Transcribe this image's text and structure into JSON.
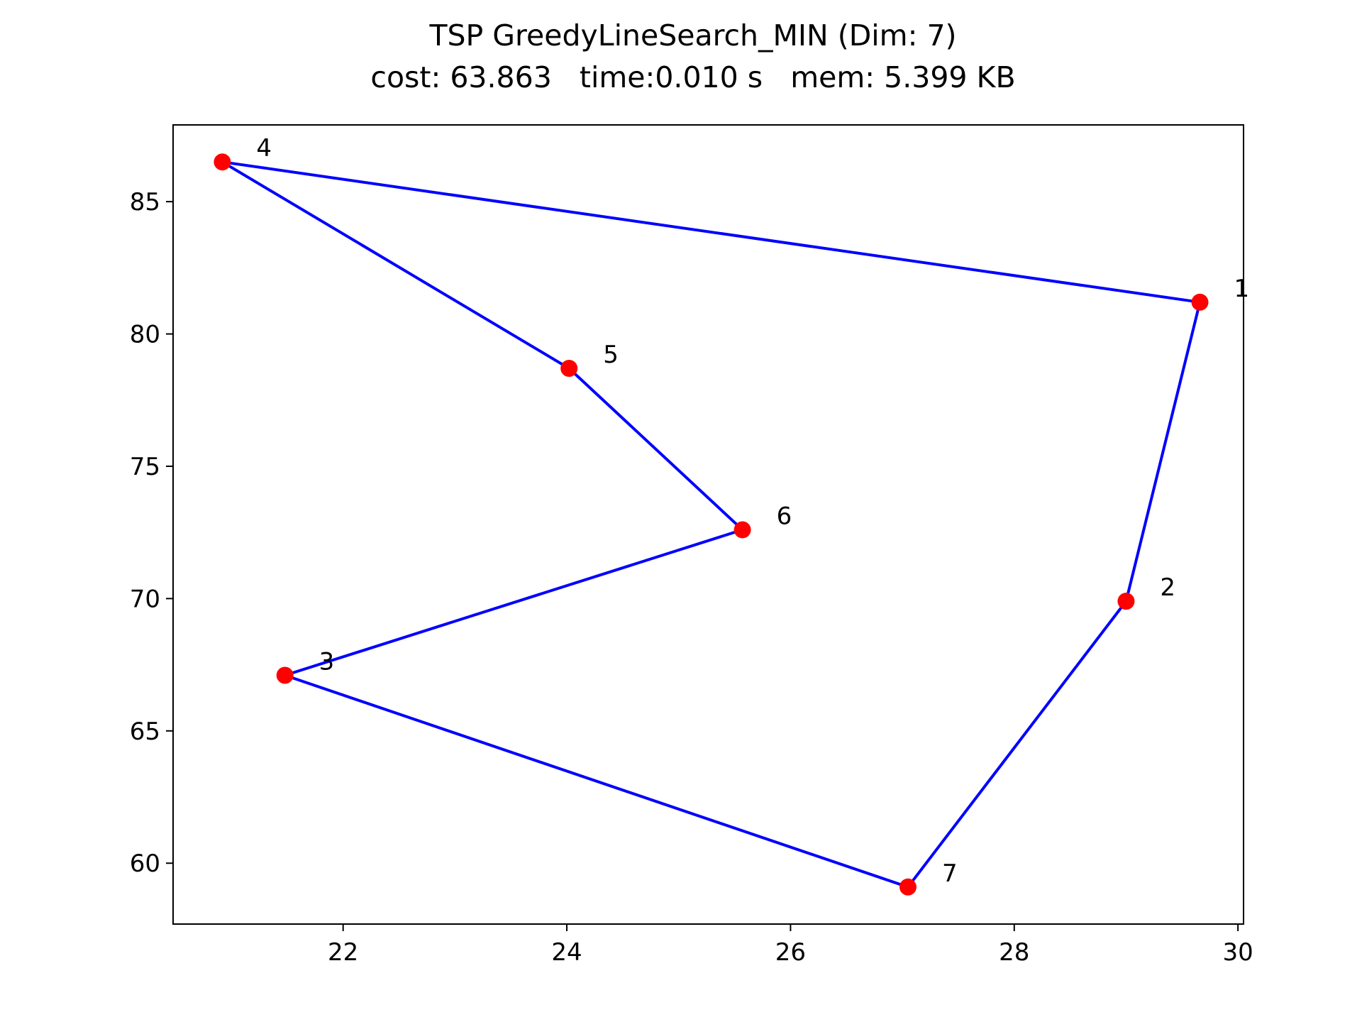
{
  "chart_data": {
    "type": "scatter",
    "title": "TSP GreedyLineSearch_MIN (Dim: 7)",
    "subtitle": "cost: 63.863   time:0.010 s   mem: 5.399 KB",
    "xlabel": "",
    "ylabel": "",
    "xlim": [
      20.48,
      30.05
    ],
    "ylim": [
      57.7,
      87.9
    ],
    "xticks": [
      22,
      24,
      26,
      28,
      30
    ],
    "yticks": [
      60,
      65,
      70,
      75,
      80,
      85
    ],
    "grid": false,
    "colors": {
      "points": "#ff0000",
      "route": "#0000ff",
      "axes": "#000000"
    },
    "cities": [
      {
        "label": "1",
        "x": 29.66,
        "y": 81.2
      },
      {
        "label": "2",
        "x": 29.0,
        "y": 69.9
      },
      {
        "label": "3",
        "x": 21.48,
        "y": 67.1
      },
      {
        "label": "4",
        "x": 20.92,
        "y": 86.5
      },
      {
        "label": "5",
        "x": 24.02,
        "y": 78.7
      },
      {
        "label": "6",
        "x": 25.57,
        "y": 72.6
      },
      {
        "label": "7",
        "x": 27.05,
        "y": 59.1
      }
    ],
    "route": [
      "4",
      "1",
      "2",
      "7",
      "3",
      "6",
      "5",
      "4"
    ]
  }
}
